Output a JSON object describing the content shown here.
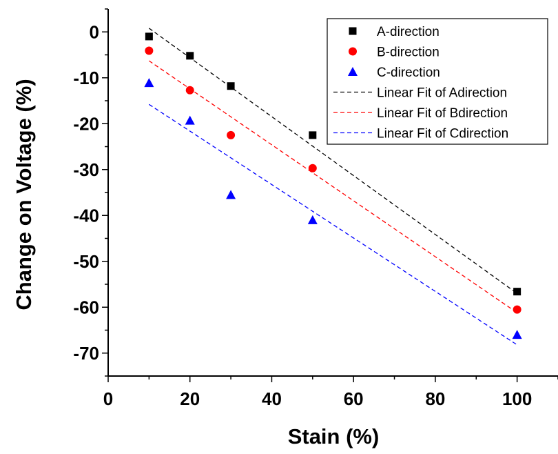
{
  "chart_data": {
    "type": "scatter",
    "title": "",
    "xlabel": "Stain (%)",
    "ylabel": "Change on Voltage (%)",
    "xlim": [
      0,
      110
    ],
    "ylim": [
      -75,
      5
    ],
    "x_ticks": [
      0,
      20,
      40,
      60,
      80,
      100
    ],
    "y_ticks": [
      0,
      -10,
      -20,
      -30,
      -40,
      -50,
      -60,
      -70
    ],
    "grid": false,
    "legend_position": "top-right",
    "series": [
      {
        "name": "A-direction",
        "marker": "square",
        "color": "#000000",
        "x": [
          10,
          20,
          30,
          50,
          100
        ],
        "y": [
          -1,
          -5.2,
          -11.8,
          -22.5,
          -56.6
        ]
      },
      {
        "name": "B-direction",
        "marker": "circle",
        "color": "#ff0000",
        "x": [
          10,
          20,
          30,
          50,
          100
        ],
        "y": [
          -4.1,
          -12.7,
          -22.5,
          -29.7,
          -60.5
        ]
      },
      {
        "name": "C-direction",
        "marker": "triangle",
        "color": "#0000ff",
        "x": [
          10,
          20,
          30,
          50,
          100
        ],
        "y": [
          -11.1,
          -19.3,
          -35.5,
          -41,
          -66
        ]
      }
    ],
    "fits": [
      {
        "name": "Linear Fit of Adirection",
        "color": "#000000",
        "x": [
          10,
          100
        ],
        "y": [
          0.8,
          -57.0
        ]
      },
      {
        "name": "Linear Fit of Bdirection",
        "color": "#ff0000",
        "x": [
          10,
          100
        ],
        "y": [
          -6.3,
          -61.2
        ]
      },
      {
        "name": "Linear Fit of Cdirection",
        "color": "#0000ff",
        "x": [
          10,
          100
        ],
        "y": [
          -15.8,
          -68.2
        ]
      }
    ]
  }
}
